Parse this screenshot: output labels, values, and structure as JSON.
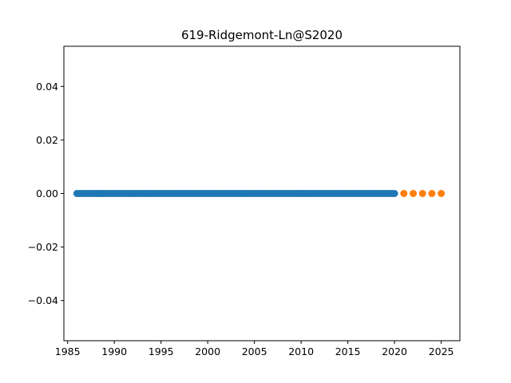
{
  "chart_data": {
    "type": "scatter",
    "title": "619-Ridgemont-Ln@S2020",
    "xlabel": "",
    "ylabel": "",
    "xlim": [
      1984.6,
      2027.0
    ],
    "ylim": [
      -0.055,
      0.055
    ],
    "x_ticks": [
      1985,
      1990,
      1995,
      2000,
      2005,
      2010,
      2015,
      2020,
      2025
    ],
    "y_ticks": [
      -0.04,
      -0.02,
      0.0,
      0.02,
      0.04
    ],
    "y_tick_labels": [
      "−0.04",
      "−0.02",
      "0.00",
      "0.02",
      "0.04"
    ],
    "grid": false,
    "series": [
      {
        "color": "#1f77b4",
        "x_start": 1986.0,
        "x_end": 2020.0,
        "x_step": 0.25,
        "y": 0.0
      },
      {
        "color": "#ff7f0e",
        "x": [
          2021,
          2022,
          2023,
          2024,
          2025
        ],
        "y": [
          0,
          0,
          0,
          0,
          0
        ]
      }
    ]
  }
}
